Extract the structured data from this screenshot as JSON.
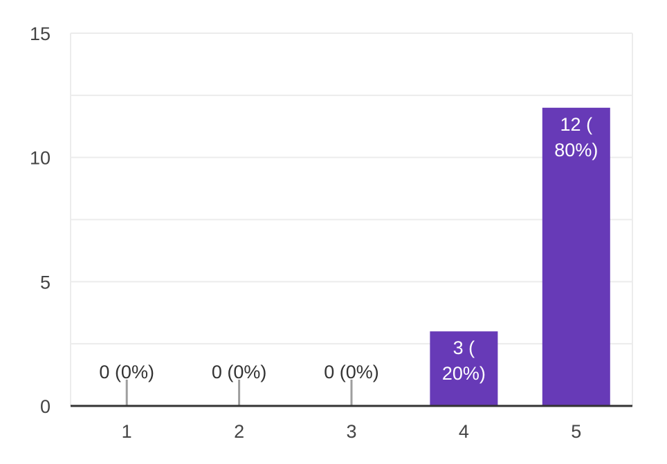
{
  "chart_data": {
    "type": "bar",
    "categories": [
      "1",
      "2",
      "3",
      "4",
      "5"
    ],
    "values": [
      0,
      0,
      0,
      3,
      12
    ],
    "data_labels": [
      [
        "0 (0%)"
      ],
      [
        "0 (0%)"
      ],
      [
        "0 (0%)"
      ],
      [
        "3 (",
        "20%)"
      ],
      [
        "12 (",
        "80%)"
      ]
    ],
    "ylim": [
      0,
      15
    ],
    "y_ticks": [
      0,
      5,
      10,
      15
    ],
    "y_tick_labels": [
      "0",
      "5",
      "10",
      "15"
    ],
    "title": "",
    "xlabel": "",
    "ylabel": "",
    "grid": true,
    "colors": {
      "bar": "#673ab7",
      "bar_label_inside": "#ffffff",
      "label_text": "#333333",
      "grid": "#ececec",
      "baseline": "#333333",
      "zero_marker": "#9e9e9e",
      "tick_text": "#444444"
    }
  }
}
